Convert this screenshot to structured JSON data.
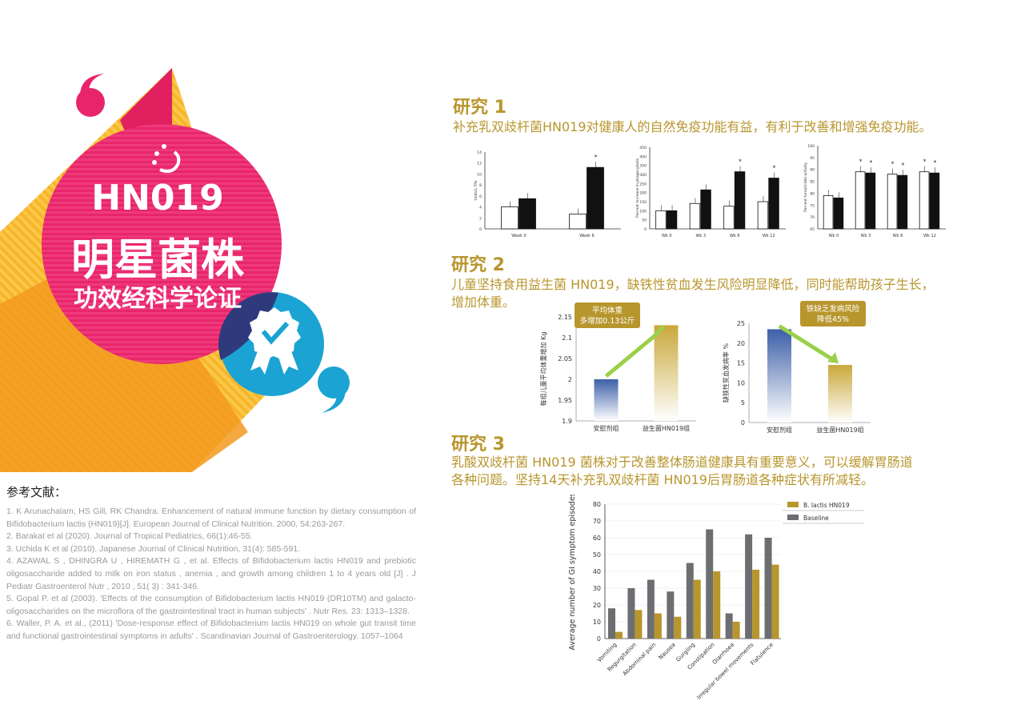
{
  "hero": {
    "line1": "HN019",
    "line2": "明星菌株",
    "line3": "功效经科学论证",
    "colors": {
      "pink": "#e8256b",
      "yellow": "#f7b52b",
      "blue": "#1aa3d3",
      "navy": "#2e3a7c"
    }
  },
  "study1": {
    "title": "研究 1",
    "desc": "补充乳双歧杆菌HN019对健康人的自然免疫功能有益，有利于改善和增强免疫功能。",
    "chart_data": [
      {
        "type": "bar",
        "categories": [
          "Week 0",
          "Week 6"
        ],
        "series": [
          {
            "values": [
              4,
              2.7
            ]
          },
          {
            "values": [
              5.5,
              11.2
            ]
          }
        ],
        "ylim": [
          0,
          14
        ],
        "yticks": [
          "0",
          "2",
          "4",
          "6",
          "8",
          "10",
          "12",
          "14"
        ],
        "ylabel": "Units/L TPo",
        "annotations": [
          "*"
        ]
      },
      {
        "type": "bar",
        "categories": [
          "Wk 0",
          "Wk 3",
          "Wk 6",
          "Wk 12"
        ],
        "series": [
          {
            "values": [
              100,
              140,
              125,
              150
            ]
          },
          {
            "values": [
              100,
              215,
              315,
              280
            ]
          }
        ],
        "ylim": [
          0,
          450
        ],
        "yticks": [
          "0",
          "50",
          "100",
          "150",
          "200",
          "250",
          "300",
          "350",
          "400",
          "450"
        ],
        "ylabel": "Percent increase in phagocytosis",
        "annotations": [
          "*",
          "*"
        ]
      },
      {
        "type": "bar",
        "categories": [
          "Wk 0",
          "Wk 3",
          "Wk 6",
          "Wk 12"
        ],
        "series": [
          {
            "values": [
              79,
              89,
              88,
              89
            ]
          },
          {
            "values": [
              78,
              88.5,
              87.5,
              88.5
            ]
          }
        ],
        "ylim": [
          65,
          100
        ],
        "yticks": [
          "65",
          "70",
          "75",
          "80",
          "85",
          "90",
          "95",
          "100"
        ],
        "ylabel": "Percent tumoricidal activity",
        "annotations": [
          "*",
          "*",
          "*",
          "*",
          "*",
          "*"
        ]
      }
    ]
  },
  "study2": {
    "title": "研究 2",
    "desc1": "儿童坚持食用益生菌 HN019，缺铁性贫血发生风险明显降低，同时能帮助孩子生长，",
    "desc2": "增加体重。",
    "chart_data": [
      {
        "type": "bar",
        "categories": [
          "安慰剂组",
          "益生菌HN019组"
        ],
        "values": [
          2.0,
          2.13
        ],
        "ylim": [
          1.9,
          2.15
        ],
        "yticks": [
          "1.9",
          "1.95",
          "2",
          "2.05",
          "2.1",
          "2.15"
        ],
        "ylabel": "每组儿童平均体重增加 Kg",
        "callout": [
          "平均体重",
          "多增加0.13公斤"
        ]
      },
      {
        "type": "bar",
        "categories": [
          "安慰剂组",
          "益生菌HN019组"
        ],
        "values": [
          23.5,
          14.5
        ],
        "ylim": [
          0,
          25
        ],
        "yticks": [
          "0",
          "5",
          "10",
          "15",
          "20",
          "25"
        ],
        "ylabel": "缺铁性贫血发病率 %",
        "callout": [
          "铁缺乏发病风险",
          "降低45%"
        ]
      }
    ]
  },
  "study3": {
    "title": "研究 3",
    "desc1": "乳酸双歧杆菌 HN019 菌株对于改善整体肠道健康具有重要意义，可以缓解胃肠道",
    "desc2": "各种问题。坚持14天补充乳双歧杆菌 HN019后胃肠道各种症状有所减轻。",
    "chart_data": {
      "type": "bar",
      "categories": [
        "Vomiting",
        "Regurgitation",
        "Abdominal pain",
        "Nausea",
        "Gurgling",
        "Constipation",
        "Diarrhoea",
        "Irregular bowel movements",
        "Flatulence"
      ],
      "series": [
        {
          "name": "B. lactis HN019",
          "color": "#b8962e",
          "values": [
            4,
            17,
            15,
            13,
            35,
            40,
            10,
            41,
            44
          ]
        },
        {
          "name": "Baseline",
          "color": "#6d6e71",
          "values": [
            18,
            30,
            35,
            28,
            45,
            65,
            15,
            62,
            60
          ]
        }
      ],
      "ylim": [
        0,
        80
      ],
      "yticks": [
        "0",
        "10",
        "20",
        "30",
        "40",
        "50",
        "60",
        "70",
        "80"
      ],
      "ylabel": "Average number of GI symptom episodes",
      "legend": "top-right"
    }
  },
  "references": {
    "title": "参考文献：",
    "items": [
      "1. K Arunachalam, HS Gill, RK Chandra. Enhancement of natural immune function by dietary consumption of Bifidobacterium lactis (HN019)[J]. European Journal of Clinical Nutrition. 2000, 54:263-267.",
      "2. Barakat et al (2020). Journal of Tropical Pediatrics, 66(1):46-55.",
      "3. Uchida K et al (2010). Japanese Journal of Clinical Nutrition, 31(4): 585-591.",
      "4. AZAWAL S , DHINGRA U , HIREMATH G , et al.   Effects of Bifidobacterium lactis HN019 and prebiotic oligosaccharide added to milk on iron status , anemia , and growth among children 1 to 4 years old [J] . J Pediatr Gastroenterol Nutr , 2010 , 51( 3) : 341-346.",
      "5. Gopal P. et al (2003).  'Effects of the consumption of Bifidobacterium lactis HN019 (DR10TM) and galacto-oligosaccharides on the microflora of the gastrointestinal tract in human subjects' . Nutr Res. 23: 1313–1328.",
      "6. Waller, P. A. et al., (2011)  'Dose-response effect of Bifidobacterium lactis HN019 on whole gut transit time and functional gastrointestinal symptoms in adults' . Scandinavian Journal of Gastroenterology. 1057–1064"
    ]
  }
}
